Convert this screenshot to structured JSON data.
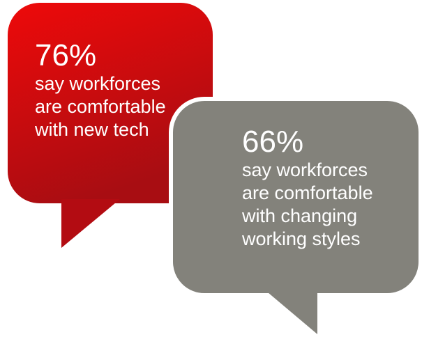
{
  "bubbles": [
    {
      "percent": "76%",
      "lines": [
        "say workforces",
        "are comfortable",
        "with new tech"
      ],
      "color_top": "#ee0a0a",
      "color_bottom": "#a80d12"
    },
    {
      "percent": "66%",
      "lines": [
        "say workforces",
        "are comfortable",
        "with changing",
        "working styles"
      ],
      "color": "#83827b"
    }
  ]
}
